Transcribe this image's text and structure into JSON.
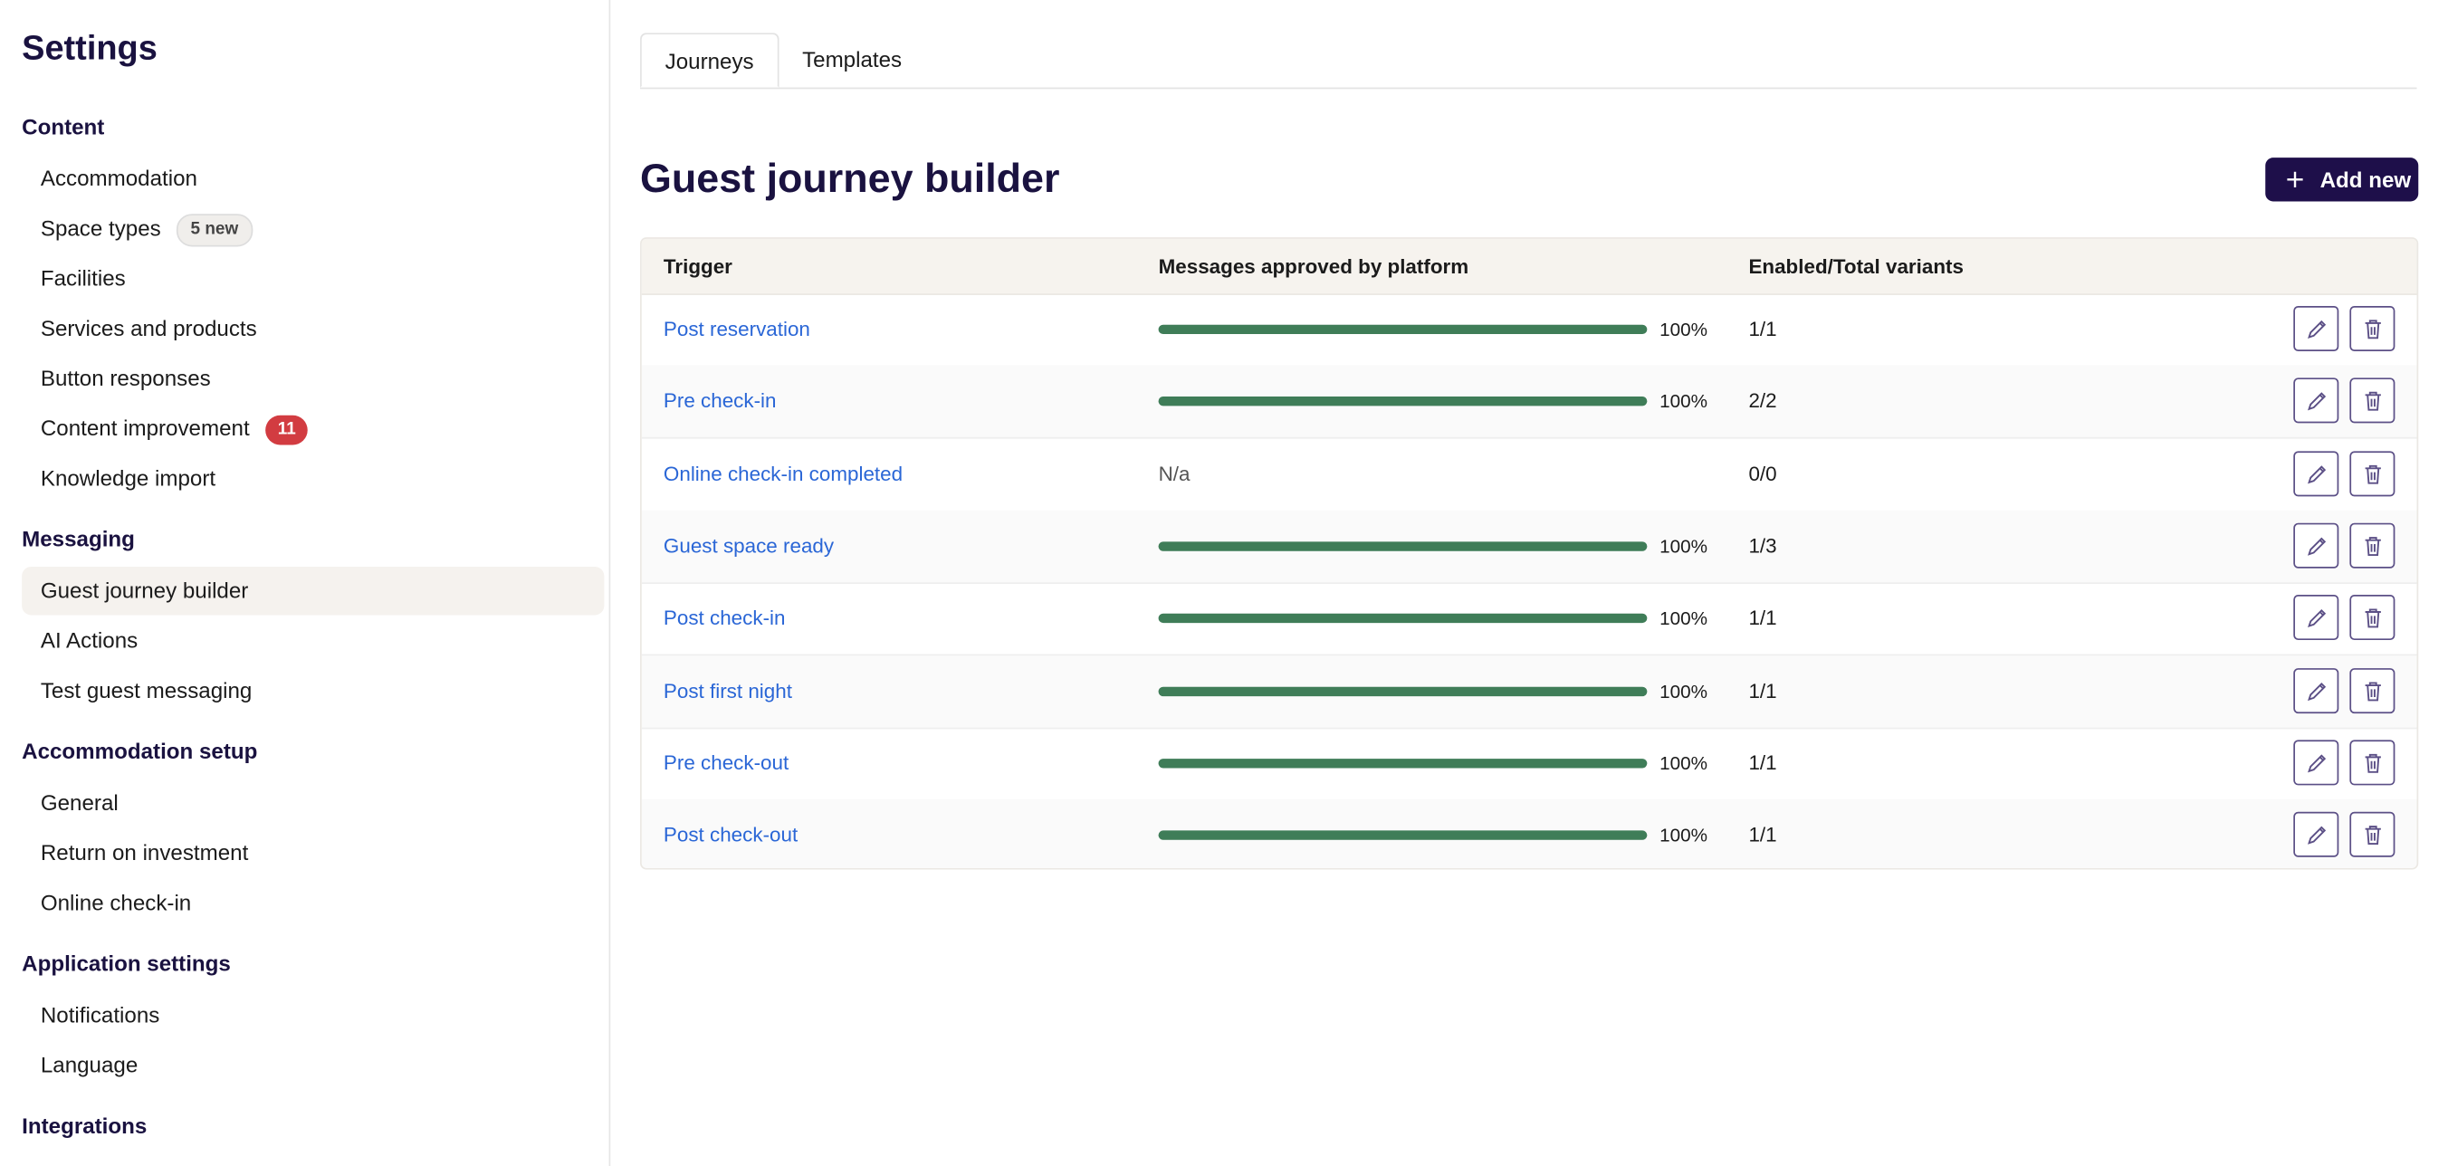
{
  "sidebar": {
    "title": "Settings",
    "sections": [
      {
        "heading": "Content",
        "items": [
          {
            "label": "Accommodation"
          },
          {
            "label": "Space types",
            "badge": "5 new"
          },
          {
            "label": "Facilities"
          },
          {
            "label": "Services and products"
          },
          {
            "label": "Button responses"
          },
          {
            "label": "Content improvement",
            "badge": 11
          },
          {
            "label": "Knowledge import"
          }
        ]
      },
      {
        "heading": "Messaging",
        "items": [
          {
            "label": "Guest journey builder",
            "active": true
          },
          {
            "label": "AI Actions"
          },
          {
            "label": "Test guest messaging"
          }
        ]
      },
      {
        "heading": "Accommodation setup",
        "items": [
          {
            "label": "General"
          },
          {
            "label": "Return on investment"
          },
          {
            "label": "Online check-in"
          }
        ]
      },
      {
        "heading": "Application settings",
        "items": [
          {
            "label": "Notifications"
          },
          {
            "label": "Language"
          }
        ]
      },
      {
        "heading": "Integrations",
        "items": []
      }
    ]
  },
  "tabs": [
    {
      "label": "Journeys",
      "active": true
    },
    {
      "label": "Templates"
    }
  ],
  "header": {
    "title": "Guest journey builder",
    "button": "Add new"
  },
  "table": {
    "columns": [
      "Trigger",
      "Messages approved by platform",
      "Enabled/Total variants"
    ],
    "rows": [
      {
        "trigger": "Post reservation",
        "approved": {
          "value": 100,
          "label": "100%"
        },
        "variants": "1/1"
      },
      {
        "trigger": "Pre check-in",
        "approved": {
          "value": 100,
          "label": "100%"
        },
        "variants": "2/2"
      },
      {
        "trigger": "Online check-in completed",
        "approved": "N/a",
        "variants": "0/0"
      },
      {
        "trigger": "Guest space ready",
        "approved": {
          "value": 100,
          "label": "100%"
        },
        "variants": "1/3"
      },
      {
        "trigger": "Post check-in",
        "approved": {
          "value": 100,
          "label": "100%"
        },
        "variants": "1/1"
      },
      {
        "trigger": "Post first night",
        "approved": {
          "value": 100,
          "label": "100%"
        },
        "variants": "1/1"
      },
      {
        "trigger": "Pre check-out",
        "approved": {
          "value": 100,
          "label": "100%"
        },
        "variants": "1/1"
      },
      {
        "trigger": "Post check-out",
        "approved": {
          "value": 100,
          "label": "100%"
        },
        "variants": "1/1"
      }
    ]
  }
}
